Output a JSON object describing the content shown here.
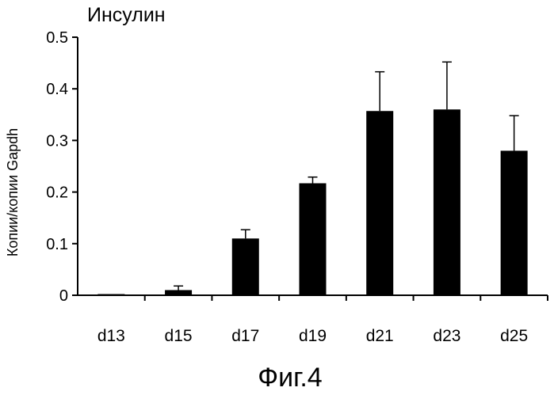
{
  "chart_data": {
    "type": "bar",
    "title": "Инсулин",
    "xlabel": "",
    "ylabel": "Копии/копии Gapdh",
    "ylim": [
      0,
      0.5
    ],
    "yticks": [
      "0",
      "0.1",
      "0.2",
      "0.3",
      "0.4",
      "0.5"
    ],
    "categories": [
      "d13",
      "d15",
      "d17",
      "d19",
      "d21",
      "d23",
      "d25"
    ],
    "values": [
      0.001,
      0.01,
      0.11,
      0.217,
      0.357,
      0.36,
      0.28
    ],
    "errors": [
      0.0,
      0.008,
      0.017,
      0.012,
      0.076,
      0.092,
      0.068
    ],
    "bar_color": "#000000",
    "grid": false,
    "legend": "none"
  },
  "caption": "Фиг.4"
}
